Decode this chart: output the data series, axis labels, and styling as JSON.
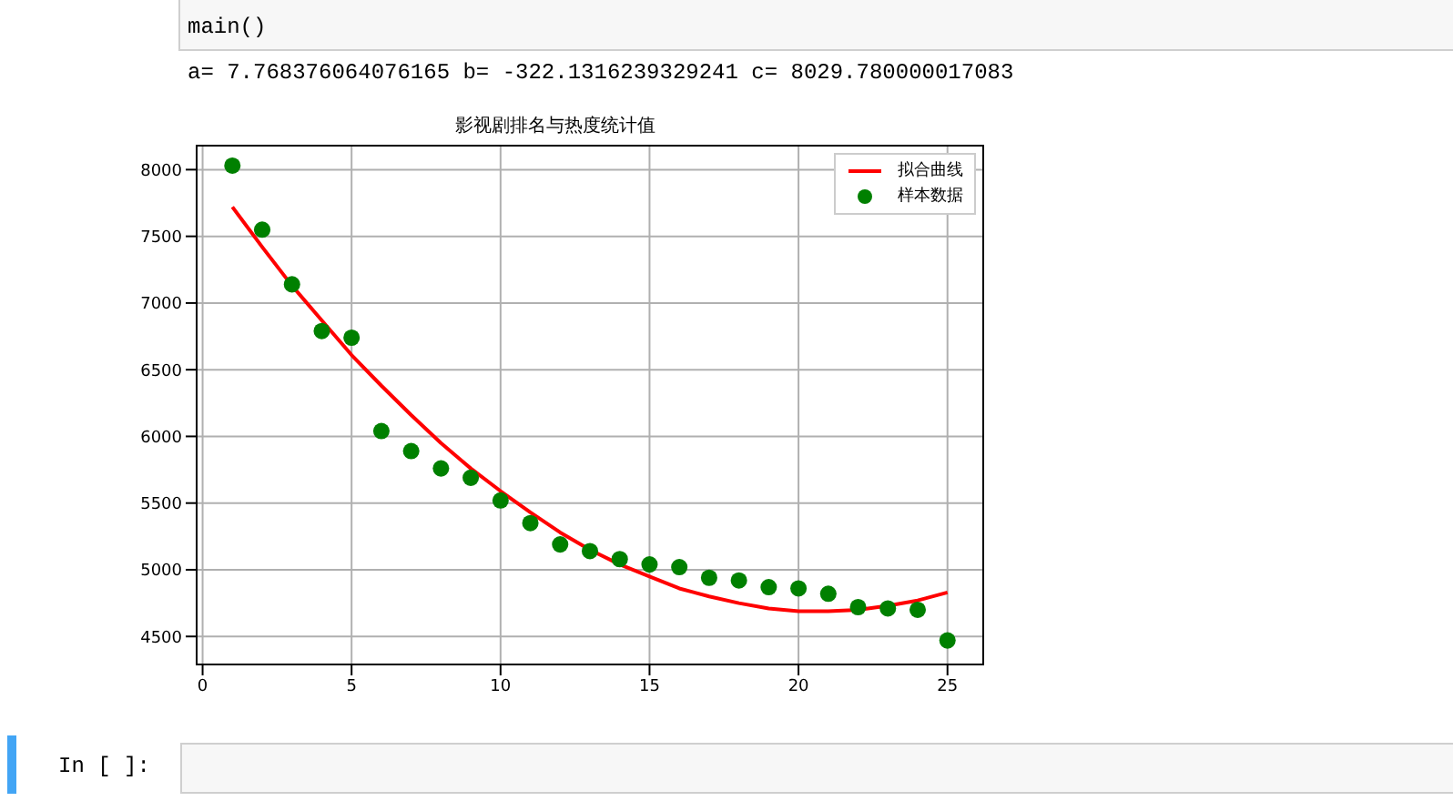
{
  "chart_data": {
    "type": "scatter",
    "title": "影视剧排名与热度统计值",
    "xlim": [
      -0.2,
      26.2
    ],
    "xticks": [
      0,
      5,
      10,
      15,
      20,
      25
    ],
    "ylim": [
      4290,
      8180
    ],
    "yticks": [
      4500,
      5000,
      5500,
      6000,
      6500,
      7000,
      7500,
      8000
    ],
    "grid": true,
    "legend": "top right",
    "series": [
      {
        "name": "拟合曲线",
        "type": "line",
        "color": "#ff0000",
        "marker": "none",
        "line_style": "solid",
        "x": [
          1,
          2,
          3,
          4,
          5,
          6,
          7,
          8,
          9,
          10,
          11,
          12,
          13,
          14,
          15,
          16,
          17,
          18,
          19,
          20,
          21,
          22,
          23,
          24,
          25
        ],
        "values": [
          7720,
          7420,
          7130,
          6870,
          6610,
          6380,
          6160,
          5950,
          5760,
          5590,
          5430,
          5280,
          5150,
          5040,
          4950,
          4860,
          4800,
          4750,
          4710,
          4690,
          4690,
          4700,
          4730,
          4770,
          4830
        ]
      },
      {
        "name": "样本数据",
        "color": "#008000",
        "marker": "circle",
        "x": [
          1,
          2,
          3,
          4,
          5,
          6,
          7,
          8,
          9,
          10,
          11,
          12,
          13,
          14,
          15,
          16,
          17,
          18,
          19,
          20,
          21,
          22,
          23,
          24,
          25
        ],
        "values": [
          8030,
          7550,
          7140,
          6790,
          6740,
          6040,
          5890,
          5760,
          5690,
          5520,
          5350,
          5190,
          5140,
          5080,
          5040,
          5020,
          4940,
          4920,
          4870,
          4860,
          4820,
          4720,
          4710,
          4700,
          4470
        ]
      }
    ],
    "annotations": [
      "main()",
      "a= 7.768376064076165 b= -322.1316239329241 c= 8029.780000017083",
      "In [ ]:"
    ]
  }
}
